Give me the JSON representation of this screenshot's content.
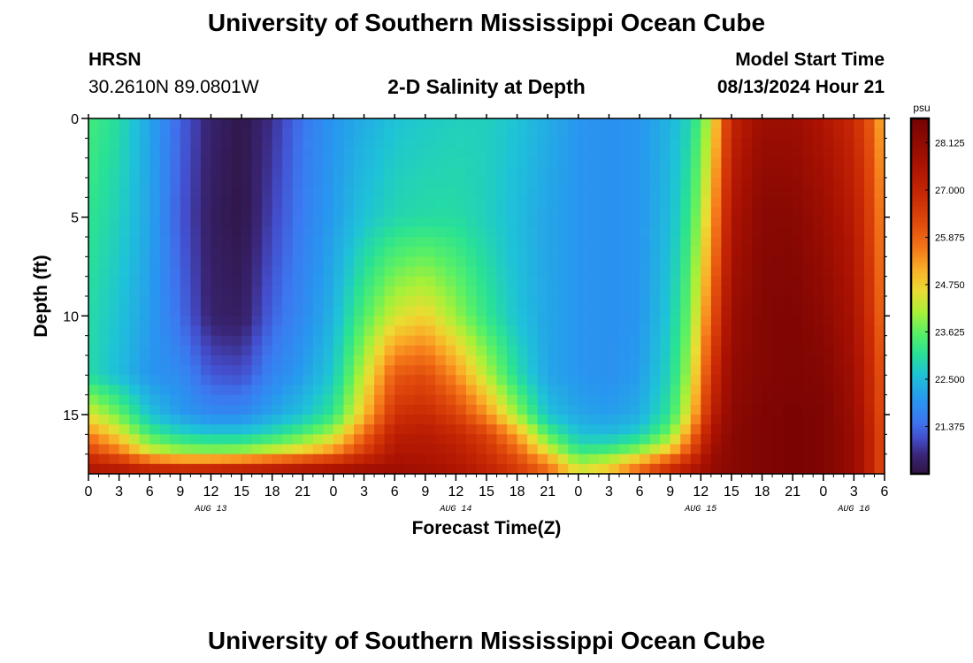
{
  "header": {
    "title_top": "University of Southern Mississippi Ocean Cube",
    "station": "HRSN",
    "location": "30.2610N  89.0801W",
    "plot_title": "2-D Salinity at Depth",
    "start_label": "Model Start Time",
    "start_value": "08/13/2024 Hour 21",
    "title_bottom": "University of Southern Mississippi Ocean Cube"
  },
  "colors": {
    "background": "#ffffff",
    "axis": "#000000"
  },
  "chart_data": {
    "type": "heatmap",
    "title": "2-D Salinity at Depth",
    "xlabel": "Forecast Time(Z)",
    "ylabel": "Depth (ft)",
    "ylim": [
      0,
      18
    ],
    "y_ticks": [
      0,
      5,
      10,
      15
    ],
    "x_tick_labels": [
      "0",
      "3",
      "6",
      "9",
      "12",
      "15",
      "18",
      "21",
      "0",
      "3",
      "6",
      "9",
      "12",
      "15",
      "18",
      "21",
      "0",
      "3",
      "6",
      "9",
      "12",
      "15",
      "18",
      "21",
      "0",
      "3",
      "6"
    ],
    "day_labels": [
      {
        "label": "AUG 13",
        "hour": 12
      },
      {
        "label": "AUG 14",
        "hour": 36
      },
      {
        "label": "AUG 15",
        "hour": 60
      },
      {
        "label": "AUG 16",
        "hour": 75
      }
    ],
    "hours_range": [
      0,
      78
    ],
    "time_step_hours": 1,
    "depth_step_ft": 0.5,
    "colorbar": {
      "unit": "psu",
      "min": 20.25,
      "max": 28.7,
      "tick_labels": [
        "28.125",
        "27.000",
        "25.875",
        "24.750",
        "23.625",
        "22.500",
        "21.375"
      ],
      "tick_values": [
        28.125,
        27.0,
        25.875,
        24.75,
        23.625,
        22.5,
        21.375
      ]
    },
    "salinity_profiles": [
      {
        "hour": 0,
        "depth": [
          0,
          5,
          10,
          13,
          15,
          16,
          17,
          17.5,
          18
        ],
        "psu": [
          23.4,
          23.2,
          23.0,
          23.0,
          24.5,
          25.5,
          26.5,
          27.3,
          27.5
        ]
      },
      {
        "hour": 3,
        "depth": [
          0,
          5,
          10,
          13,
          15,
          16,
          17,
          17.5,
          18
        ],
        "psu": [
          23.0,
          22.8,
          22.6,
          22.5,
          23.7,
          24.6,
          25.8,
          27.0,
          27.5
        ]
      },
      {
        "hour": 6,
        "depth": [
          0,
          5,
          10,
          13,
          15,
          16,
          17,
          17.5,
          18
        ],
        "psu": [
          22.2,
          22.2,
          22.1,
          22.0,
          22.6,
          23.4,
          24.6,
          26.4,
          27.4
        ]
      },
      {
        "hour": 9,
        "depth": [
          0,
          5,
          10,
          13,
          15,
          16,
          17,
          17.5,
          18
        ],
        "psu": [
          21.3,
          21.2,
          21.4,
          21.8,
          22.1,
          22.9,
          24.2,
          26.2,
          27.4
        ]
      },
      {
        "hour": 12,
        "depth": [
          0,
          5,
          10,
          13,
          15,
          16,
          17,
          17.5,
          18
        ],
        "psu": [
          20.6,
          20.5,
          20.6,
          21.2,
          21.8,
          22.7,
          24.1,
          26.3,
          27.4
        ]
      },
      {
        "hour": 15,
        "depth": [
          0,
          5,
          10,
          13,
          15,
          16,
          17,
          17.5,
          18
        ],
        "psu": [
          20.3,
          20.3,
          20.5,
          21.1,
          21.8,
          22.7,
          24.2,
          26.5,
          27.5
        ]
      },
      {
        "hour": 18,
        "depth": [
          0,
          5,
          10,
          13,
          15,
          16,
          17,
          17.5,
          18
        ],
        "psu": [
          20.8,
          21.0,
          21.3,
          21.7,
          22.2,
          23.0,
          24.6,
          26.7,
          27.6
        ]
      },
      {
        "hour": 21,
        "depth": [
          0,
          5,
          10,
          13,
          15,
          16,
          17,
          17.5,
          18
        ],
        "psu": [
          21.5,
          21.6,
          21.8,
          22.1,
          22.6,
          23.5,
          25.0,
          27.0,
          27.7
        ]
      },
      {
        "hour": 24,
        "depth": [
          0,
          5,
          10,
          13,
          15,
          16,
          17,
          17.5,
          18
        ],
        "psu": [
          22.0,
          22.1,
          22.4,
          22.7,
          23.2,
          24.2,
          25.6,
          27.2,
          27.8
        ]
      },
      {
        "hour": 27,
        "depth": [
          0,
          5,
          10,
          13,
          15,
          16,
          17,
          17.5,
          18
        ],
        "psu": [
          22.3,
          22.6,
          23.5,
          24.3,
          24.9,
          25.8,
          26.6,
          27.5,
          27.9
        ]
      },
      {
        "hour": 30,
        "depth": [
          0,
          5,
          10,
          13,
          15,
          16,
          17,
          17.5,
          18
        ],
        "psu": [
          22.6,
          22.9,
          24.4,
          26.0,
          26.7,
          27.2,
          27.5,
          27.7,
          27.9
        ]
      },
      {
        "hour": 33,
        "depth": [
          0,
          5,
          10,
          13,
          15,
          16,
          17,
          17.5,
          18
        ],
        "psu": [
          22.7,
          23.0,
          24.7,
          26.2,
          26.9,
          27.3,
          27.5,
          27.6,
          27.8
        ]
      },
      {
        "hour": 36,
        "depth": [
          0,
          5,
          10,
          13,
          15,
          16,
          17,
          17.5,
          18
        ],
        "psu": [
          22.8,
          23.0,
          24.0,
          25.4,
          26.4,
          27.0,
          27.3,
          27.4,
          27.6
        ]
      },
      {
        "hour": 39,
        "depth": [
          0,
          5,
          10,
          13,
          15,
          16,
          17,
          17.5,
          18
        ],
        "psu": [
          22.8,
          22.8,
          23.2,
          24.2,
          25.4,
          26.4,
          26.8,
          27.0,
          27.2
        ]
      },
      {
        "hour": 42,
        "depth": [
          0,
          5,
          10,
          13,
          15,
          16,
          17,
          17.5,
          18
        ],
        "psu": [
          22.6,
          22.5,
          22.6,
          23.0,
          24.0,
          25.2,
          26.0,
          26.4,
          26.6
        ]
      },
      {
        "hour": 45,
        "depth": [
          0,
          5,
          10,
          13,
          15,
          16,
          17,
          17.5,
          18
        ],
        "psu": [
          22.3,
          22.2,
          22.2,
          22.2,
          22.6,
          23.5,
          24.7,
          25.6,
          25.8
        ]
      },
      {
        "hour": 48,
        "depth": [
          0,
          5,
          10,
          13,
          15,
          16,
          17,
          17.5,
          18
        ],
        "psu": [
          22.0,
          22.0,
          22.0,
          22.0,
          22.2,
          22.6,
          23.4,
          24.2,
          24.5
        ]
      },
      {
        "hour": 51,
        "depth": [
          0,
          5,
          10,
          13,
          15,
          16,
          17,
          17.5,
          18
        ],
        "psu": [
          21.9,
          21.9,
          21.9,
          21.9,
          22.1,
          22.5,
          23.6,
          24.6,
          24.9
        ]
      },
      {
        "hour": 54,
        "depth": [
          0,
          5,
          10,
          13,
          15,
          16,
          17,
          17.5,
          18
        ],
        "psu": [
          22.0,
          22.0,
          22.0,
          22.1,
          22.3,
          22.8,
          24.2,
          25.5,
          25.9
        ]
      },
      {
        "hour": 57,
        "depth": [
          0,
          5,
          10,
          13,
          15,
          16,
          17,
          17.5,
          18
        ],
        "psu": [
          22.4,
          22.5,
          22.7,
          22.9,
          23.2,
          23.8,
          25.1,
          26.5,
          27.0
        ]
      },
      {
        "hour": 59,
        "depth": [
          0,
          5,
          10,
          13,
          15,
          16,
          17,
          17.5,
          18
        ],
        "psu": [
          22.9,
          23.3,
          23.8,
          24.2,
          24.7,
          25.5,
          26.4,
          27.2,
          27.5
        ]
      },
      {
        "hour": 61,
        "depth": [
          0,
          5,
          10,
          13,
          15,
          16,
          17,
          17.5,
          18
        ],
        "psu": [
          24.3,
          25.0,
          25.9,
          26.6,
          27.1,
          27.5,
          27.8,
          28.0,
          28.0
        ]
      },
      {
        "hour": 63,
        "depth": [
          0,
          5,
          10,
          13,
          15,
          16,
          17,
          17.5,
          18
        ],
        "psu": [
          27.0,
          27.5,
          27.9,
          28.1,
          28.2,
          28.3,
          28.3,
          28.3,
          28.3
        ]
      },
      {
        "hour": 66,
        "depth": [
          0,
          5,
          10,
          13,
          15,
          16,
          17,
          17.5,
          18
        ],
        "psu": [
          27.9,
          28.3,
          28.4,
          28.4,
          28.5,
          28.5,
          28.5,
          28.5,
          28.5
        ]
      },
      {
        "hour": 69,
        "depth": [
          0,
          5,
          10,
          13,
          15,
          16,
          17,
          17.5,
          18
        ],
        "psu": [
          27.9,
          28.3,
          28.5,
          28.5,
          28.6,
          28.6,
          28.6,
          28.6,
          28.6
        ]
      },
      {
        "hour": 72,
        "depth": [
          0,
          5,
          10,
          13,
          15,
          16,
          17,
          17.5,
          18
        ],
        "psu": [
          27.5,
          27.9,
          28.2,
          28.4,
          28.5,
          28.5,
          28.5,
          28.5,
          28.5
        ]
      },
      {
        "hour": 75,
        "depth": [
          0,
          5,
          10,
          13,
          15,
          16,
          17,
          17.5,
          18
        ],
        "psu": [
          26.9,
          27.3,
          27.6,
          27.8,
          27.9,
          28.0,
          28.0,
          28.0,
          28.0
        ]
      },
      {
        "hour": 77,
        "depth": [
          0,
          5,
          10,
          13,
          15,
          16,
          17,
          17.5,
          18
        ],
        "psu": [
          25.8,
          26.2,
          26.5,
          26.7,
          26.8,
          26.9,
          26.9,
          26.9,
          26.9
        ]
      },
      {
        "hour": 78,
        "depth": [
          0,
          5,
          10,
          13,
          15,
          16,
          17,
          17.5,
          18
        ],
        "psu": [
          24.8,
          25.2,
          25.5,
          25.8,
          25.9,
          26.0,
          26.0,
          26.0,
          26.0
        ]
      }
    ]
  }
}
